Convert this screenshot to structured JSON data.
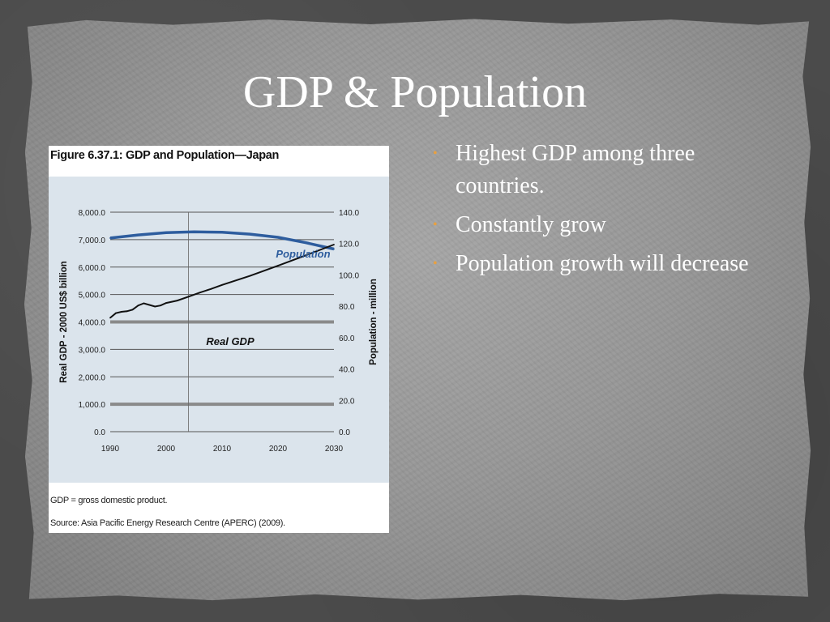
{
  "slide": {
    "title": "GDP & Population",
    "bullets": [
      "Highest GDP among three countries.",
      "Constantly grow",
      "Population growth will decrease"
    ],
    "colors": {
      "background": "#4b4b4b",
      "paper": "#9a9a9a",
      "text": "#ffffff",
      "bullet": "#e8a040"
    }
  },
  "figure": {
    "title": "Figure 6.37.1:  GDP and Population—Japan",
    "note": "GDP = gross domestic product.",
    "source": "Source: Asia Pacific Energy Research Centre (APERC) (2009)."
  },
  "chart_data": {
    "type": "line",
    "title": "",
    "xlabel": "",
    "ylabel": "Real GDP - 2000 US$ billion",
    "y2label": "Population - million",
    "xlim": [
      1990,
      2030
    ],
    "ylim": [
      0,
      8000
    ],
    "y2lim": [
      0,
      140
    ],
    "x_ticks": [
      "1990",
      "2000",
      "2010",
      "2020",
      "2030"
    ],
    "y_ticks": [
      "0.0",
      "1,000.0",
      "2,000.0",
      "3,000.0",
      "4,000.0",
      "5,000.0",
      "6,000.0",
      "7,000.0",
      "8,000.0"
    ],
    "y2_ticks": [
      "0.0",
      "20.0",
      "40.0",
      "60.0",
      "80.0",
      "100.0",
      "120.0",
      "140.0"
    ],
    "grid": "horizontal",
    "series": [
      {
        "name": "Population",
        "axis": "right",
        "color": "#2e5d9e",
        "x": [
          1990,
          1995,
          2000,
          2005,
          2010,
          2015,
          2020,
          2025,
          2030
        ],
        "values": [
          123.5,
          125.5,
          127,
          127.5,
          127.2,
          126,
          124,
          120.5,
          116.5
        ]
      },
      {
        "name": "Real GDP",
        "axis": "left",
        "color": "#111111",
        "x": [
          1990,
          1991,
          1992,
          1993,
          1994,
          1995,
          1996,
          1997,
          1998,
          1999,
          2000,
          2002,
          2004,
          2006,
          2008,
          2010,
          2015,
          2020,
          2025,
          2030
        ],
        "values": [
          4150,
          4320,
          4370,
          4390,
          4450,
          4600,
          4680,
          4620,
          4560,
          4600,
          4690,
          4780,
          4920,
          5070,
          5200,
          5350,
          5680,
          6050,
          6430,
          6820
        ]
      }
    ],
    "reference_line_x": 2004
  }
}
